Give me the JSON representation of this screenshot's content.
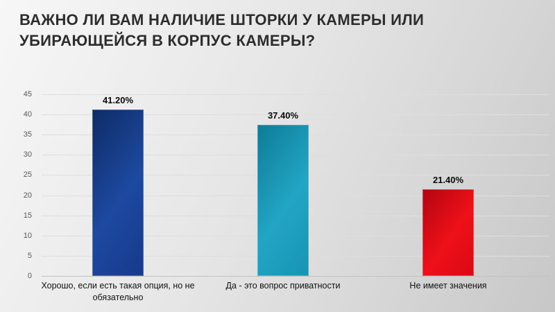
{
  "slide": {
    "title": "ВАЖНО ЛИ ВАМ НАЛИЧИЕ ШТОРКИ У КАМЕРЫ ИЛИ\nУБИРАЮЩЕЙСЯ В КОРПУС КАМЕРЫ?"
  },
  "chart_data": {
    "type": "bar",
    "title": "ВАЖНО ЛИ ВАМ НАЛИЧИЕ ШТОРКИ У КАМЕРЫ ИЛИ УБИРАЮЩЕЙСЯ В КОРПУС КАМЕРЫ?",
    "categories": [
      "Хорошо, если есть такая опция,  но не\nобязательно",
      "Да - это вопрос приватности",
      "Не имеет значения"
    ],
    "values": [
      41.2,
      37.4,
      21.4
    ],
    "value_labels": [
      "41.20%",
      "37.40%",
      "21.40%"
    ],
    "bar_colors": [
      {
        "main": "#16398b",
        "dark": "#0e2c66",
        "light": "#1d49a0"
      },
      {
        "main": "#1694b3",
        "dark": "#0d7c97",
        "light": "#22a5c4"
      },
      {
        "main": "#d90914",
        "dark": "#b30511",
        "light": "#ee1018"
      }
    ],
    "xlabel": "",
    "ylabel": "",
    "ylim": [
      0,
      45
    ],
    "yticks": [
      0,
      5,
      10,
      15,
      20,
      25,
      30,
      35,
      40,
      45
    ],
    "grid": true,
    "legend": "none",
    "tick_color": "#595959",
    "label_color": "#0a0a0a"
  }
}
